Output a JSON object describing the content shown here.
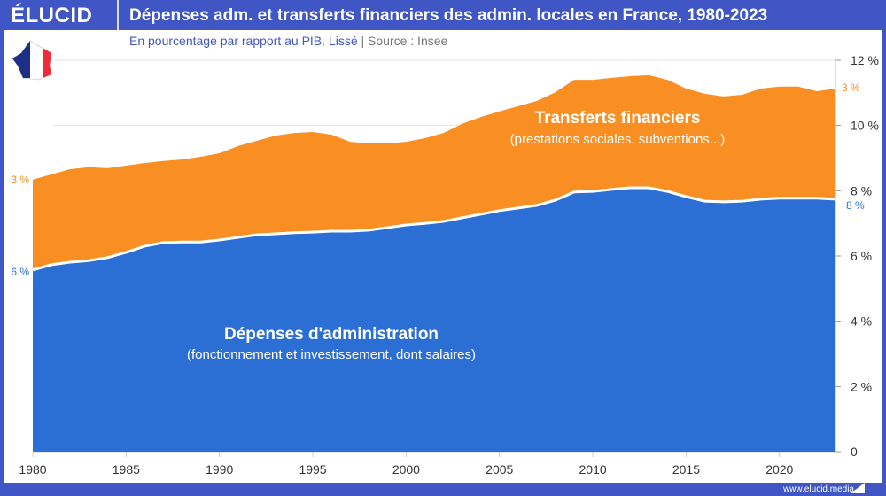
{
  "header": {
    "logo": "ÉLUCID",
    "title": "Dépenses adm. et transferts financiers des admin. locales en France, 1980-2023"
  },
  "subtitle": {
    "text": "En pourcentage par rapport au PIB. Lissé",
    "separator": "|",
    "source": "Source : Insee"
  },
  "footer": {
    "url": "www.elucid.media"
  },
  "colors": {
    "frame": "#3f56c4",
    "admin": "#2b6fd4",
    "transfers": "#f98e23",
    "grid": "#e6e6e6"
  },
  "icons": {
    "flag": "france-map-flag-icon"
  },
  "chart_data": {
    "type": "area",
    "stacked": true,
    "title": "Dépenses adm. et transferts financiers des admin. locales en France, 1980-2023",
    "xlim": [
      1980,
      2023
    ],
    "ylim": [
      0,
      12
    ],
    "x_ticks": [
      "1980",
      "1985",
      "1990",
      "1995",
      "2000",
      "2005",
      "2010",
      "2015",
      "2020"
    ],
    "y_ticks": [
      "0",
      "2 %",
      "4 %",
      "6 %",
      "8 %",
      "10 %",
      "12 %"
    ],
    "y_axis_position": "right",
    "grid": true,
    "x": [
      1980,
      1981,
      1982,
      1983,
      1984,
      1985,
      1986,
      1987,
      1988,
      1989,
      1990,
      1991,
      1992,
      1993,
      1994,
      1995,
      1996,
      1997,
      1998,
      1999,
      2000,
      2001,
      2002,
      2003,
      2004,
      2005,
      2006,
      2007,
      2008,
      2009,
      2010,
      2011,
      2012,
      2013,
      2014,
      2015,
      2016,
      2017,
      2018,
      2019,
      2020,
      2021,
      2022,
      2023
    ],
    "series": [
      {
        "key": "admin",
        "label": "Dépenses d'administration",
        "sublabel": "(fonctionnement et investissement, dont salaires)",
        "start_label": "6 %",
        "end_label": "8 %",
        "values": [
          5.57,
          5.73,
          5.81,
          5.86,
          5.95,
          6.11,
          6.3,
          6.41,
          6.43,
          6.43,
          6.49,
          6.57,
          6.65,
          6.68,
          6.71,
          6.73,
          6.76,
          6.76,
          6.79,
          6.87,
          6.95,
          7.0,
          7.06,
          7.17,
          7.28,
          7.39,
          7.47,
          7.55,
          7.71,
          7.96,
          7.98,
          8.04,
          8.09,
          8.09,
          7.98,
          7.82,
          7.68,
          7.66,
          7.68,
          7.74,
          7.77,
          7.77,
          7.77,
          7.74
        ]
      },
      {
        "key": "transfers",
        "label": "Transferts financiers",
        "sublabel": "(prestations sociales, subventions...)",
        "start_label": "3 %",
        "end_label": "3 %",
        "values": [
          2.77,
          2.77,
          2.85,
          2.86,
          2.74,
          2.66,
          2.55,
          2.5,
          2.53,
          2.61,
          2.66,
          2.8,
          2.88,
          3.01,
          3.06,
          3.07,
          2.96,
          2.74,
          2.66,
          2.58,
          2.55,
          2.61,
          2.71,
          2.88,
          2.98,
          3.04,
          3.12,
          3.2,
          3.31,
          3.44,
          3.42,
          3.42,
          3.42,
          3.45,
          3.42,
          3.31,
          3.29,
          3.23,
          3.26,
          3.39,
          3.42,
          3.42,
          3.28,
          3.39
        ]
      }
    ]
  }
}
